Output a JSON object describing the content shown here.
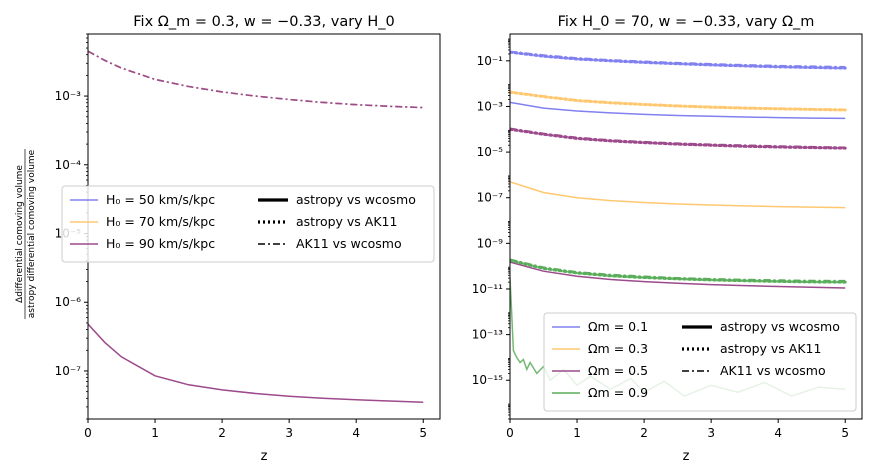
{
  "chart_data": [
    {
      "type": "line",
      "title": "Fix Ω_m = 0.3, w = −0.33, vary H_0",
      "xlabel": "z",
      "ylabel": "Δdifferential comoving volume / astropy differential comoving volume",
      "ylabel_num": "Δdifferential comoving volume",
      "ylabel_den": "astropy differential comoving volume",
      "xlim": [
        0,
        5.25
      ],
      "ylim": [
        2e-08,
        0.008
      ],
      "yscale": "log",
      "xticks": [
        "0",
        "1",
        "2",
        "3",
        "4",
        "5"
      ],
      "yticks": [
        "10⁻⁷",
        "10⁻⁶",
        "10⁻⁵",
        "10⁻⁴",
        "10⁻³"
      ],
      "grid": false,
      "legend_position": "center-left",
      "legend": {
        "colors": [
          "H₀ = 50 km/s/kpc",
          "H₀ = 70 km/s/kpc",
          "H₀ = 90 km/s/kpc"
        ],
        "styles": [
          "astropy vs wcosmo",
          "astropy vs AK11",
          "AK11 vs wcosmo"
        ]
      },
      "series": [
        {
          "name": "H₀ = 50 km/s/kpc, AK11 vs wcosmo",
          "color": "#8080f0",
          "dash": "dashdot",
          "x": [
            0,
            0.25,
            0.5,
            1,
            1.5,
            2,
            2.5,
            3,
            3.5,
            4,
            4.5,
            5
          ],
          "y": [
            0.0045,
            0.0033,
            0.00255,
            0.00175,
            0.00138,
            0.00115,
            0.001,
            0.00089,
            0.00081,
            0.00075,
            0.00071,
            0.00068
          ]
        },
        {
          "name": "H₀ = 70 km/s/kpc, AK11 vs wcosmo",
          "color": "#ffc870",
          "dash": "dashdot",
          "x": [
            0,
            0.25,
            0.5,
            1,
            1.5,
            2,
            2.5,
            3,
            3.5,
            4,
            4.5,
            5
          ],
          "y": [
            0.0045,
            0.0033,
            0.00255,
            0.00175,
            0.00138,
            0.00115,
            0.001,
            0.00089,
            0.00081,
            0.00075,
            0.00071,
            0.00068
          ]
        },
        {
          "name": "H₀ = 90 km/s/kpc, AK11 vs wcosmo",
          "color": "#9c4a8c",
          "dash": "dashdot",
          "x": [
            0,
            0.25,
            0.5,
            1,
            1.5,
            2,
            2.5,
            3,
            3.5,
            4,
            4.5,
            5
          ],
          "y": [
            0.0045,
            0.0033,
            0.00255,
            0.00175,
            0.00138,
            0.00115,
            0.001,
            0.00089,
            0.00081,
            0.00075,
            0.00071,
            0.00068
          ]
        },
        {
          "name": "H₀ = 90 km/s/kpc, astropy vs wcosmo",
          "color": "#9c4a8c",
          "dash": "solid",
          "x": [
            0,
            0.25,
            0.5,
            1,
            1.5,
            2,
            2.5,
            3,
            3.5,
            4,
            4.5,
            5
          ],
          "y": [
            4.8e-07,
            2.6e-07,
            1.6e-07,
            8.5e-08,
            6.3e-08,
            5.3e-08,
            4.7e-08,
            4.3e-08,
            4e-08,
            3.8e-08,
            3.65e-08,
            3.5e-08
          ]
        }
      ]
    },
    {
      "type": "line",
      "title": "Fix H_0 = 70, w = −0.33, vary Ω_m",
      "xlabel": "z",
      "xlim": [
        0,
        5.25
      ],
      "ylim": [
        2e-17,
        1.5
      ],
      "yscale": "log",
      "xticks": [
        "0",
        "1",
        "2",
        "3",
        "4",
        "5"
      ],
      "yticks": [
        "10⁻¹⁵",
        "10⁻¹³",
        "10⁻¹¹",
        "10⁻⁹",
        "10⁻⁷",
        "10⁻⁵",
        "10⁻³",
        "10⁻¹"
      ],
      "grid": false,
      "legend_position": "lower-right",
      "legend": {
        "colors": [
          "Ωm = 0.1",
          "Ωm = 0.3",
          "Ωm = 0.5",
          "Ωm = 0.9"
        ],
        "styles": [
          "astropy vs wcosmo",
          "astropy vs AK11",
          "AK11 vs wcosmo"
        ]
      },
      "series": [
        {
          "name": "Ωm = 0.1, astropy vs AK11",
          "color": "#8080f0",
          "dash": "dotted",
          "x": [
            0,
            0.5,
            1,
            1.5,
            2,
            2.5,
            3,
            3.5,
            4,
            4.5,
            5
          ],
          "y": [
            0.24,
            0.16,
            0.12,
            0.1,
            0.085,
            0.075,
            0.066,
            0.06,
            0.055,
            0.051,
            0.048
          ]
        },
        {
          "name": "Ωm = 0.1, AK11 vs wcosmo",
          "color": "#8080f0",
          "dash": "dashdot",
          "x": [
            0,
            0.5,
            1,
            1.5,
            2,
            2.5,
            3,
            3.5,
            4,
            4.5,
            5
          ],
          "y": [
            0.26,
            0.18,
            0.135,
            0.11,
            0.095,
            0.083,
            0.074,
            0.067,
            0.062,
            0.058,
            0.055
          ]
        },
        {
          "name": "Ωm = 0.1, astropy vs wcosmo",
          "color": "#8080f0",
          "dash": "solid",
          "x": [
            0,
            0.5,
            1,
            1.5,
            2,
            2.5,
            3,
            3.5,
            4,
            4.5,
            5
          ],
          "y": [
            0.0015,
            0.00085,
            0.00063,
            0.00052,
            0.00045,
            0.0004,
            0.00037,
            0.000345,
            0.000325,
            0.00031,
            0.0003
          ]
        },
        {
          "name": "Ωm = 0.3, astropy vs AK11",
          "color": "#ffc870",
          "dash": "dotted",
          "x": [
            0,
            0.5,
            1,
            1.5,
            2,
            2.5,
            3,
            3.5,
            4,
            4.5,
            5
          ],
          "y": [
            0.0042,
            0.0027,
            0.0018,
            0.00145,
            0.00122,
            0.00105,
            0.00093,
            0.00085,
            0.00079,
            0.00074,
            0.0007
          ]
        },
        {
          "name": "Ωm = 0.3, AK11 vs wcosmo",
          "color": "#ffc870",
          "dash": "dashdot",
          "x": [
            0,
            0.5,
            1,
            1.5,
            2,
            2.5,
            3,
            3.5,
            4,
            4.5,
            5
          ],
          "y": [
            0.0045,
            0.0029,
            0.00195,
            0.00155,
            0.0013,
            0.00112,
            0.001,
            0.00091,
            0.00084,
            0.00079,
            0.00075
          ]
        },
        {
          "name": "Ωm = 0.5, astropy vs AK11",
          "color": "#9c4a8c",
          "dash": "dotted",
          "x": [
            0,
            0.5,
            1,
            1.5,
            2,
            2.5,
            3,
            3.5,
            4,
            4.5,
            5
          ],
          "y": [
            0.0001,
            6e-05,
            4e-05,
            3.1e-05,
            2.6e-05,
            2.25e-05,
            2e-05,
            1.8e-05,
            1.67e-05,
            1.57e-05,
            1.5e-05
          ]
        },
        {
          "name": "Ωm = 0.5, AK11 vs wcosmo",
          "color": "#9c4a8c",
          "dash": "dashdot",
          "x": [
            0,
            0.5,
            1,
            1.5,
            2,
            2.5,
            3,
            3.5,
            4,
            4.5,
            5
          ],
          "y": [
            0.00011,
            6.6e-05,
            4.4e-05,
            3.4e-05,
            2.85e-05,
            2.45e-05,
            2.2e-05,
            2e-05,
            1.84e-05,
            1.72e-05,
            1.63e-05
          ]
        },
        {
          "name": "Ωm = 0.5, astropy vs wcosmo",
          "color": "#9c4a8c",
          "dash": "solid",
          "x": [
            0,
            0.5,
            1,
            1.5,
            2,
            2.5,
            3,
            3.5,
            4,
            4.5,
            5
          ],
          "y": [
            1.5e-10,
            6e-11,
            3.6e-11,
            2.6e-11,
            2.1e-11,
            1.8e-11,
            1.55e-11,
            1.4e-11,
            1.28e-11,
            1.2e-11,
            1.1e-11
          ]
        },
        {
          "name": "Ωm = 0.3, astropy vs wcosmo",
          "color": "#ffc870",
          "dash": "solid",
          "x": [
            0,
            0.5,
            1,
            1.5,
            2,
            2.5,
            3,
            3.5,
            4,
            4.5,
            5
          ],
          "y": [
            5e-07,
            1.7e-07,
            1e-07,
            7.5e-08,
            6.2e-08,
            5.3e-08,
            4.8e-08,
            4.4e-08,
            4.1e-08,
            3.9e-08,
            3.7e-08
          ]
        },
        {
          "name": "Ωm = 0.9, astropy vs AK11",
          "color": "#5aad5a",
          "dash": "dotted",
          "x": [
            0,
            0.5,
            1,
            1.5,
            2,
            2.5,
            3,
            3.5,
            4,
            4.5,
            5
          ],
          "y": [
            1.8e-10,
            8e-11,
            5e-11,
            3.8e-11,
            3.2e-11,
            2.8e-11,
            2.5e-11,
            2.3e-11,
            2.15e-11,
            2.05e-11,
            2e-11
          ]
        },
        {
          "name": "Ωm = 0.9, AK11 vs wcosmo",
          "color": "#5aad5a",
          "dash": "dashdot",
          "x": [
            0,
            0.5,
            1,
            1.5,
            2,
            2.5,
            3,
            3.5,
            4,
            4.5,
            5
          ],
          "y": [
            2e-10,
            9e-11,
            5.6e-11,
            4.3e-11,
            3.6e-11,
            3.1e-11,
            2.8e-11,
            2.6e-11,
            2.45e-11,
            2.35e-11,
            2.3e-11
          ]
        },
        {
          "name": "Ωm = 0.9, astropy vs wcosmo",
          "color": "#5aad5a",
          "dash": "solid",
          "noisy": true,
          "x": [
            0,
            0.02,
            0.05,
            0.1,
            0.15,
            0.2,
            0.25,
            0.3,
            0.4,
            0.5,
            0.6,
            0.8,
            1.0,
            1.2,
            1.5,
            1.8,
            2.0,
            2.3,
            2.6,
            3.0,
            3.4,
            3.8,
            4.2,
            4.6,
            5.0
          ],
          "y": [
            3e-11,
            2e-12,
            2e-14,
            1e-14,
            6e-15,
            8e-15,
            3e-15,
            6e-15,
            2e-15,
            4e-15,
            1e-15,
            3e-15,
            6e-16,
            1.5e-15,
            4e-16,
            1.2e-15,
            3e-16,
            9e-16,
            2e-16,
            6e-16,
            3e-16,
            8e-16,
            2e-16,
            5e-16,
            4e-16
          ]
        }
      ]
    }
  ]
}
